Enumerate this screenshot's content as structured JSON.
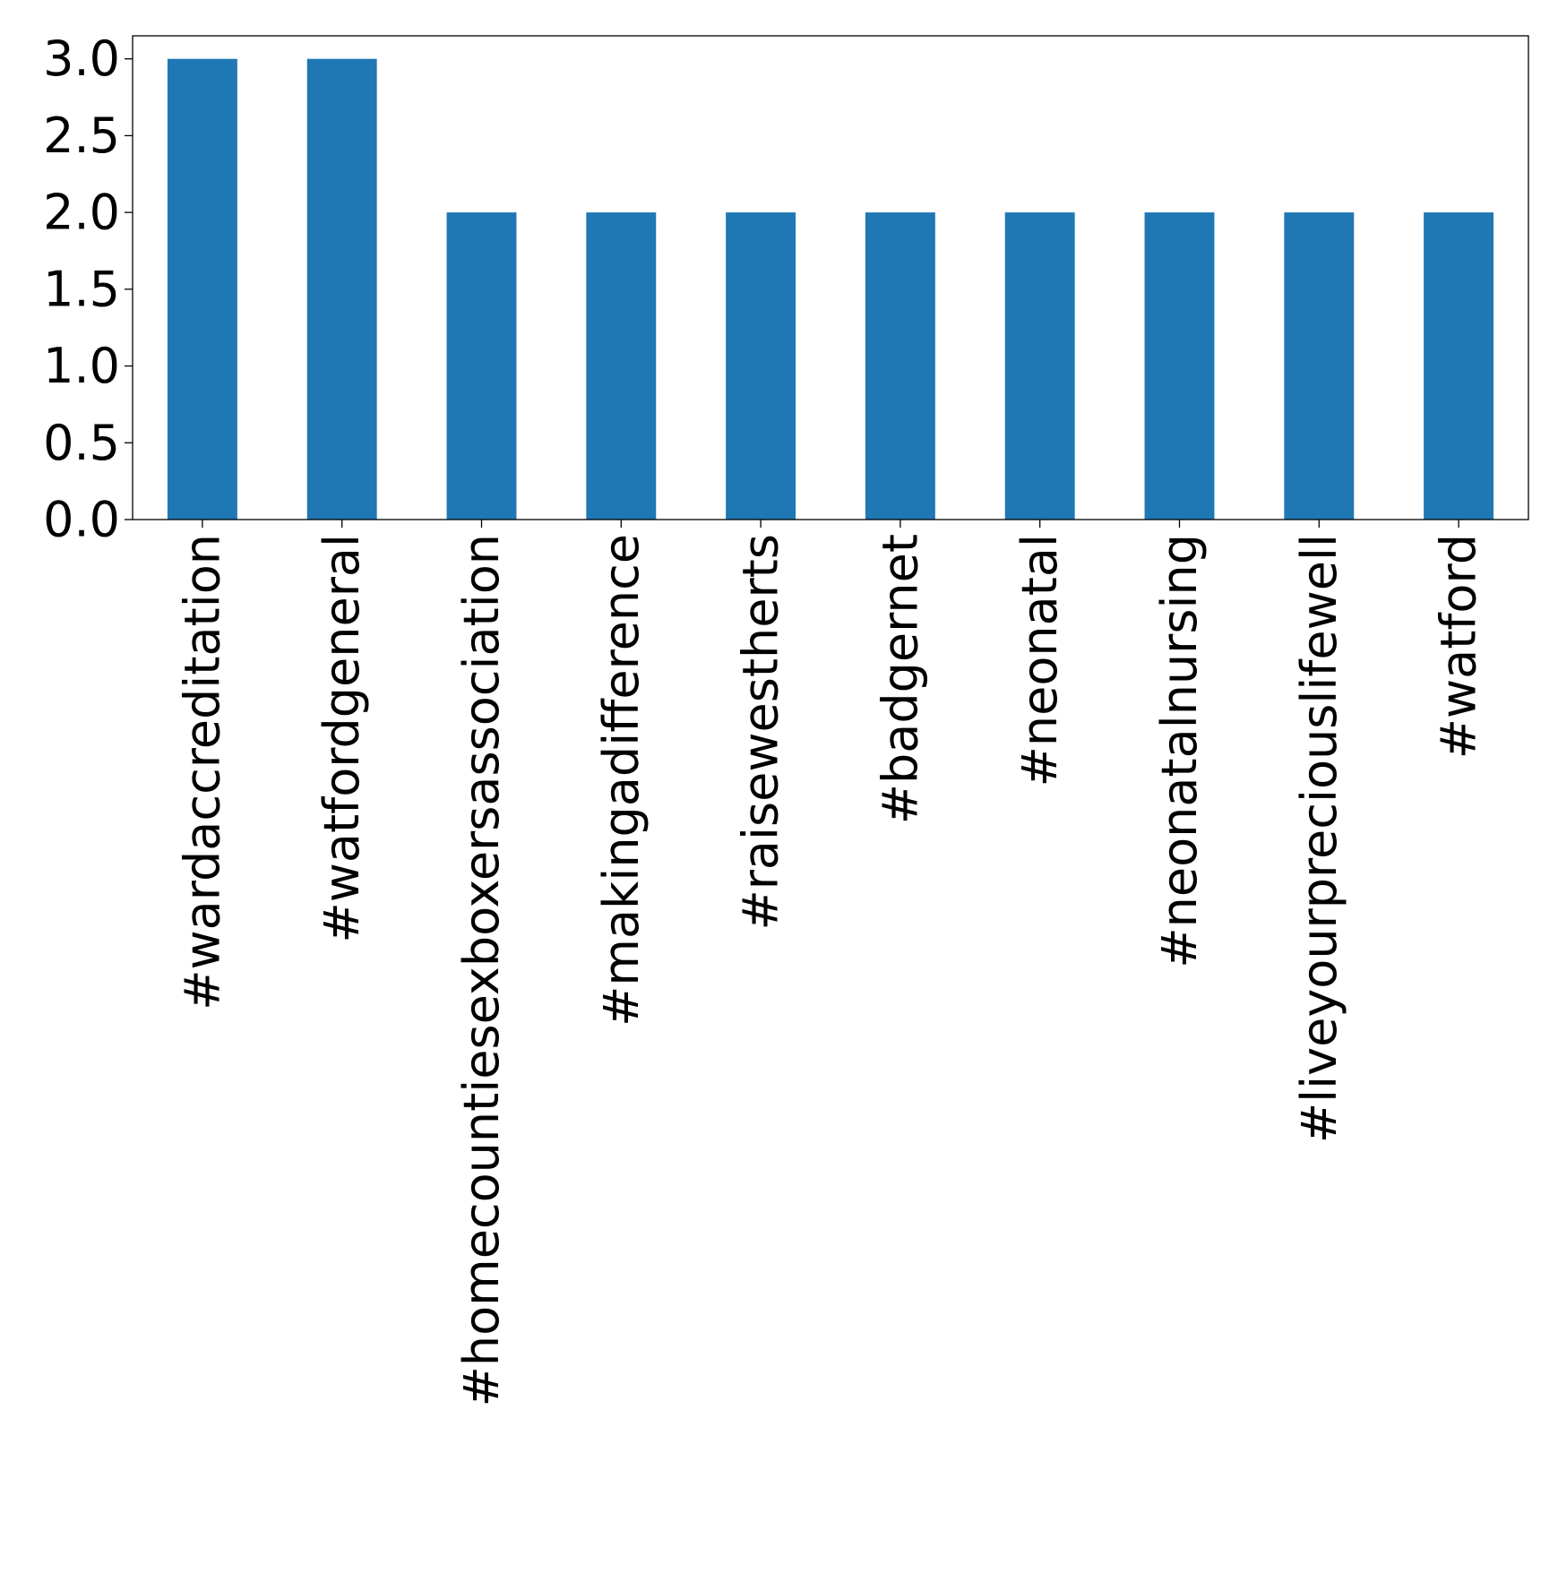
{
  "chart_data": {
    "type": "bar",
    "title": "",
    "xlabel": "",
    "ylabel": "",
    "categories": [
      "#wardaccreditation",
      "#watfordgeneral",
      "#homecountiesexboxersassociation",
      "#makingadifference",
      "#raisewestherts",
      "#badgernet",
      "#neonatal",
      "#neonatalnursing",
      "#liveyourpreciouslifewell",
      "#watford"
    ],
    "values": [
      3,
      3,
      2,
      2,
      2,
      2,
      2,
      2,
      2,
      2
    ],
    "ylim": [
      0,
      3.15
    ],
    "yticks": [
      0.0,
      0.5,
      1.0,
      1.5,
      2.0,
      2.5,
      3.0
    ],
    "ytick_labels": [
      "0.0",
      "0.5",
      "1.0",
      "1.5",
      "2.0",
      "2.5",
      "3.0"
    ],
    "grid": false,
    "legend": "none",
    "bar_color": "#1f77b4"
  }
}
